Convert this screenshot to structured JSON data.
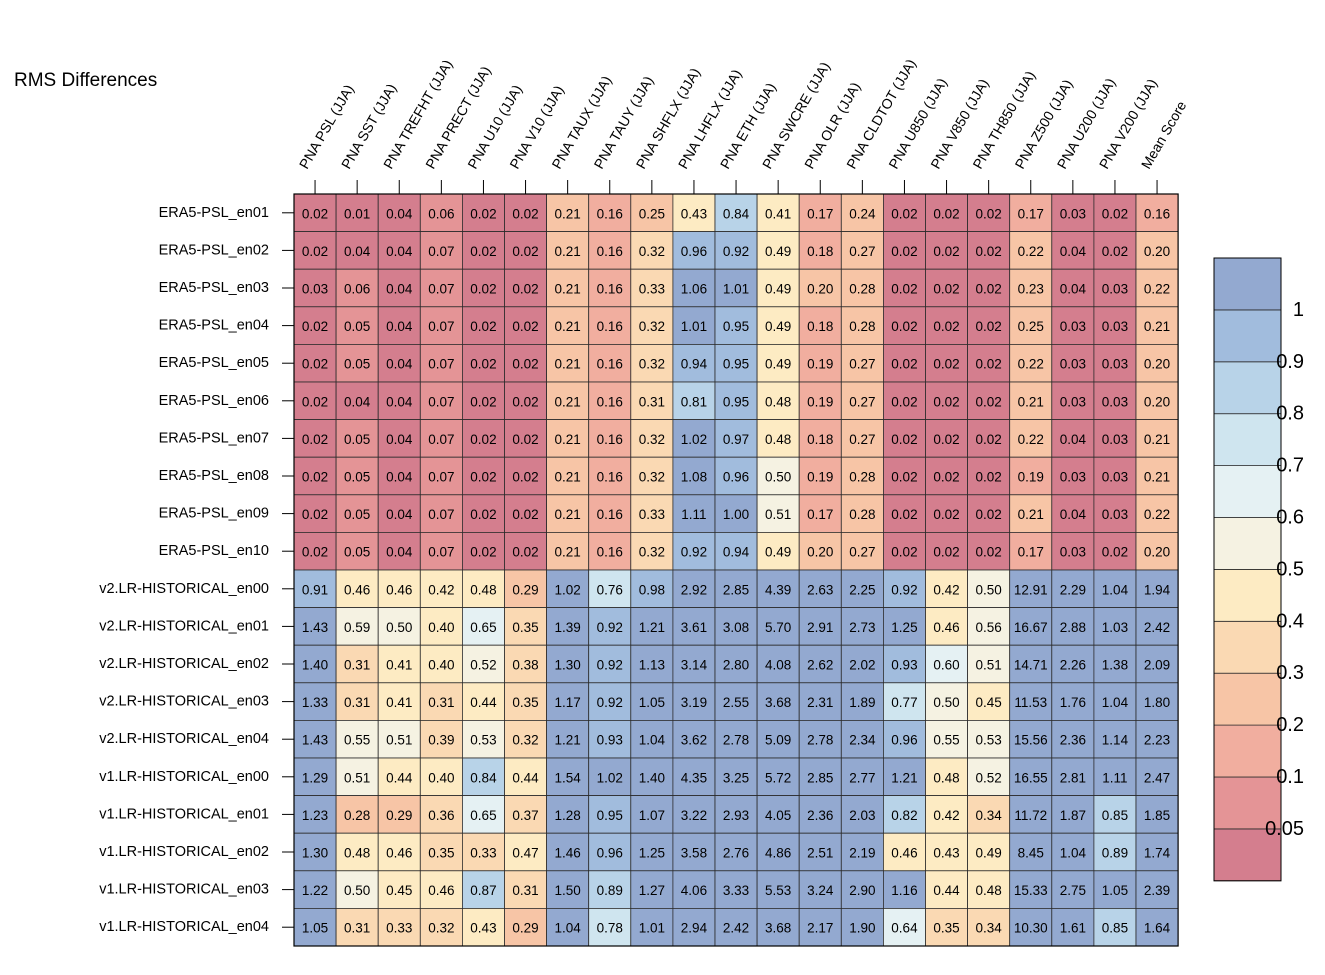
{
  "chart_data": {
    "type": "heatmap",
    "title": "RMS Differences",
    "columns": [
      "PNA PSL (JJA)",
      "PNA SST (JJA)",
      "PNA TREFHT (JJA)",
      "PNA PRECT (JJA)",
      "PNA U10 (JJA)",
      "PNA V10 (JJA)",
      "PNA TAUX (JJA)",
      "PNA TAUY (JJA)",
      "PNA SHFLX (JJA)",
      "PNA LHFLX (JJA)",
      "PNA ETH (JJA)",
      "PNA SWCRE (JJA)",
      "PNA OLR (JJA)",
      "PNA CLDTOT (JJA)",
      "PNA U850 (JJA)",
      "PNA V850 (JJA)",
      "PNA TH850 (JJA)",
      "PNA Z500 (JJA)",
      "PNA U200 (JJA)",
      "PNA V200 (JJA)",
      "Mean Score"
    ],
    "rows": [
      "ERA5-PSL_en01",
      "ERA5-PSL_en02",
      "ERA5-PSL_en03",
      "ERA5-PSL_en04",
      "ERA5-PSL_en05",
      "ERA5-PSL_en06",
      "ERA5-PSL_en07",
      "ERA5-PSL_en08",
      "ERA5-PSL_en09",
      "ERA5-PSL_en10",
      "v2.LR-HISTORICAL_en00",
      "v2.LR-HISTORICAL_en01",
      "v2.LR-HISTORICAL_en02",
      "v2.LR-HISTORICAL_en03",
      "v2.LR-HISTORICAL_en04",
      "v1.LR-HISTORICAL_en00",
      "v1.LR-HISTORICAL_en01",
      "v1.LR-HISTORICAL_en02",
      "v1.LR-HISTORICAL_en03",
      "v1.LR-HISTORICAL_en04"
    ],
    "values": [
      [
        0.02,
        0.01,
        0.04,
        0.06,
        0.02,
        0.02,
        0.21,
        0.16,
        0.25,
        0.43,
        0.84,
        0.41,
        0.17,
        0.24,
        0.02,
        0.02,
        0.02,
        0.17,
        0.03,
        0.02,
        0.16
      ],
      [
        0.02,
        0.04,
        0.04,
        0.07,
        0.02,
        0.02,
        0.21,
        0.16,
        0.32,
        0.96,
        0.92,
        0.49,
        0.18,
        0.27,
        0.02,
        0.02,
        0.02,
        0.22,
        0.04,
        0.02,
        0.2
      ],
      [
        0.03,
        0.06,
        0.04,
        0.07,
        0.02,
        0.02,
        0.21,
        0.16,
        0.33,
        1.06,
        1.01,
        0.49,
        0.2,
        0.28,
        0.02,
        0.02,
        0.02,
        0.23,
        0.04,
        0.03,
        0.22
      ],
      [
        0.02,
        0.05,
        0.04,
        0.07,
        0.02,
        0.02,
        0.21,
        0.16,
        0.32,
        1.01,
        0.95,
        0.49,
        0.18,
        0.28,
        0.02,
        0.02,
        0.02,
        0.25,
        0.03,
        0.03,
        0.21
      ],
      [
        0.02,
        0.05,
        0.04,
        0.07,
        0.02,
        0.02,
        0.21,
        0.16,
        0.32,
        0.94,
        0.95,
        0.49,
        0.19,
        0.27,
        0.02,
        0.02,
        0.02,
        0.22,
        0.03,
        0.03,
        0.2
      ],
      [
        0.02,
        0.04,
        0.04,
        0.07,
        0.02,
        0.02,
        0.21,
        0.16,
        0.31,
        0.81,
        0.95,
        0.48,
        0.19,
        0.27,
        0.02,
        0.02,
        0.02,
        0.21,
        0.03,
        0.03,
        0.2
      ],
      [
        0.02,
        0.05,
        0.04,
        0.07,
        0.02,
        0.02,
        0.21,
        0.16,
        0.32,
        1.02,
        0.97,
        0.48,
        0.18,
        0.27,
        0.02,
        0.02,
        0.02,
        0.22,
        0.04,
        0.03,
        0.21
      ],
      [
        0.02,
        0.05,
        0.04,
        0.07,
        0.02,
        0.02,
        0.21,
        0.16,
        0.32,
        1.08,
        0.96,
        0.5,
        0.19,
        0.28,
        0.02,
        0.02,
        0.02,
        0.19,
        0.03,
        0.03,
        0.21
      ],
      [
        0.02,
        0.05,
        0.04,
        0.07,
        0.02,
        0.02,
        0.21,
        0.16,
        0.33,
        1.11,
        1.0,
        0.51,
        0.17,
        0.28,
        0.02,
        0.02,
        0.02,
        0.21,
        0.04,
        0.03,
        0.22
      ],
      [
        0.02,
        0.05,
        0.04,
        0.07,
        0.02,
        0.02,
        0.21,
        0.16,
        0.32,
        0.92,
        0.94,
        0.49,
        0.2,
        0.27,
        0.02,
        0.02,
        0.02,
        0.17,
        0.03,
        0.02,
        0.2
      ],
      [
        0.91,
        0.46,
        0.46,
        0.42,
        0.48,
        0.29,
        1.02,
        0.76,
        0.98,
        2.92,
        2.85,
        4.39,
        2.63,
        2.25,
        0.92,
        0.42,
        0.5,
        12.91,
        2.29,
        1.04,
        1.94
      ],
      [
        1.43,
        0.59,
        0.5,
        0.4,
        0.65,
        0.35,
        1.39,
        0.92,
        1.21,
        3.61,
        3.08,
        5.7,
        2.91,
        2.73,
        1.25,
        0.46,
        0.56,
        16.67,
        2.88,
        1.03,
        2.42
      ],
      [
        1.4,
        0.31,
        0.41,
        0.4,
        0.52,
        0.38,
        1.3,
        0.92,
        1.13,
        3.14,
        2.8,
        4.08,
        2.62,
        2.02,
        0.93,
        0.6,
        0.51,
        14.71,
        2.26,
        1.38,
        2.09
      ],
      [
        1.33,
        0.31,
        0.41,
        0.31,
        0.44,
        0.35,
        1.17,
        0.92,
        1.05,
        3.19,
        2.55,
        3.68,
        2.31,
        1.89,
        0.77,
        0.5,
        0.45,
        11.53,
        1.76,
        1.04,
        1.8
      ],
      [
        1.43,
        0.55,
        0.51,
        0.39,
        0.53,
        0.32,
        1.21,
        0.93,
        1.04,
        3.62,
        2.78,
        5.09,
        2.78,
        2.34,
        0.96,
        0.55,
        0.53,
        15.56,
        2.36,
        1.14,
        2.23
      ],
      [
        1.29,
        0.51,
        0.44,
        0.4,
        0.84,
        0.44,
        1.54,
        1.02,
        1.4,
        4.35,
        3.25,
        5.72,
        2.85,
        2.77,
        1.21,
        0.48,
        0.52,
        16.55,
        2.81,
        1.11,
        2.47
      ],
      [
        1.23,
        0.28,
        0.29,
        0.36,
        0.65,
        0.37,
        1.28,
        0.95,
        1.07,
        3.22,
        2.93,
        4.05,
        2.36,
        2.03,
        0.82,
        0.42,
        0.34,
        11.72,
        1.87,
        0.85,
        1.85
      ],
      [
        1.3,
        0.48,
        0.46,
        0.35,
        0.33,
        0.47,
        1.46,
        0.96,
        1.25,
        3.58,
        2.76,
        4.86,
        2.51,
        2.19,
        0.46,
        0.43,
        0.49,
        8.45,
        1.04,
        0.89,
        1.74
      ],
      [
        1.22,
        0.5,
        0.45,
        0.46,
        0.87,
        0.31,
        1.5,
        0.89,
        1.27,
        4.06,
        3.33,
        5.53,
        3.24,
        2.9,
        1.16,
        0.44,
        0.48,
        15.33,
        2.75,
        1.05,
        2.39
      ],
      [
        1.05,
        0.31,
        0.33,
        0.32,
        0.43,
        0.29,
        1.04,
        0.78,
        1.01,
        2.94,
        2.42,
        3.68,
        2.17,
        1.9,
        0.64,
        0.35,
        0.34,
        10.3,
        1.61,
        0.85,
        1.64
      ]
    ],
    "colorbar": {
      "levels": [
        0.05,
        0.1,
        0.2,
        0.3,
        0.4,
        0.5,
        0.6,
        0.7,
        0.8,
        0.9,
        1
      ],
      "labels": [
        "0.05",
        "0.1",
        "0.2",
        "0.3",
        "0.4",
        "0.5",
        "0.6",
        "0.7",
        "0.8",
        "0.9",
        "1"
      ],
      "colors": [
        "#d47e8e",
        "#e49496",
        "#f1ae9f",
        "#f7c5a6",
        "#fad9b3",
        "#fdebc3",
        "#f5f2e2",
        "#e5f1f3",
        "#cfe5ef",
        "#b8d3e8",
        "#a1bcdd",
        "#93a9d0"
      ],
      "placement": "right"
    }
  }
}
